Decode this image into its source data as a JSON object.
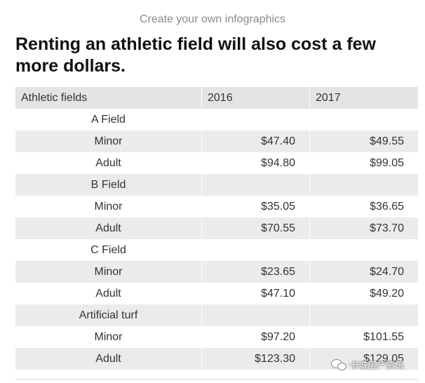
{
  "top_label": "Create your own infographics",
  "headline": "Renting an athletic field will also cost a few more dollars.",
  "table": {
    "headers": [
      "Athletic fields",
      "2016",
      "2017"
    ],
    "rows": [
      {
        "label": "A Field",
        "v2016": "",
        "v2017": "",
        "kind": "group"
      },
      {
        "label": "Minor",
        "v2016": "$47.40",
        "v2017": "$49.55",
        "kind": "sub"
      },
      {
        "label": "Adult",
        "v2016": "$94.80",
        "v2017": "$99.05",
        "kind": "sub"
      },
      {
        "label": "B Field",
        "v2016": "",
        "v2017": "",
        "kind": "group"
      },
      {
        "label": "Minor",
        "v2016": "$35.05",
        "v2017": "$36.65",
        "kind": "sub"
      },
      {
        "label": "Adult",
        "v2016": "$70.55",
        "v2017": "$73.70",
        "kind": "sub"
      },
      {
        "label": "C Field",
        "v2016": "",
        "v2017": "",
        "kind": "group"
      },
      {
        "label": "Minor",
        "v2016": "$23.65",
        "v2017": "$24.70",
        "kind": "sub"
      },
      {
        "label": "Adult",
        "v2016": "$47.10",
        "v2017": "$49.20",
        "kind": "sub"
      },
      {
        "label": "Artificial turf",
        "v2016": "",
        "v2017": "",
        "kind": "group"
      },
      {
        "label": "Minor",
        "v2016": "$97.20",
        "v2017": "$101.55",
        "kind": "sub"
      },
      {
        "label": "Adult",
        "v2016": "$123.30",
        "v2017": "$129.05",
        "kind": "sub"
      }
    ]
  },
  "watermark": "卡城房产资讯"
}
